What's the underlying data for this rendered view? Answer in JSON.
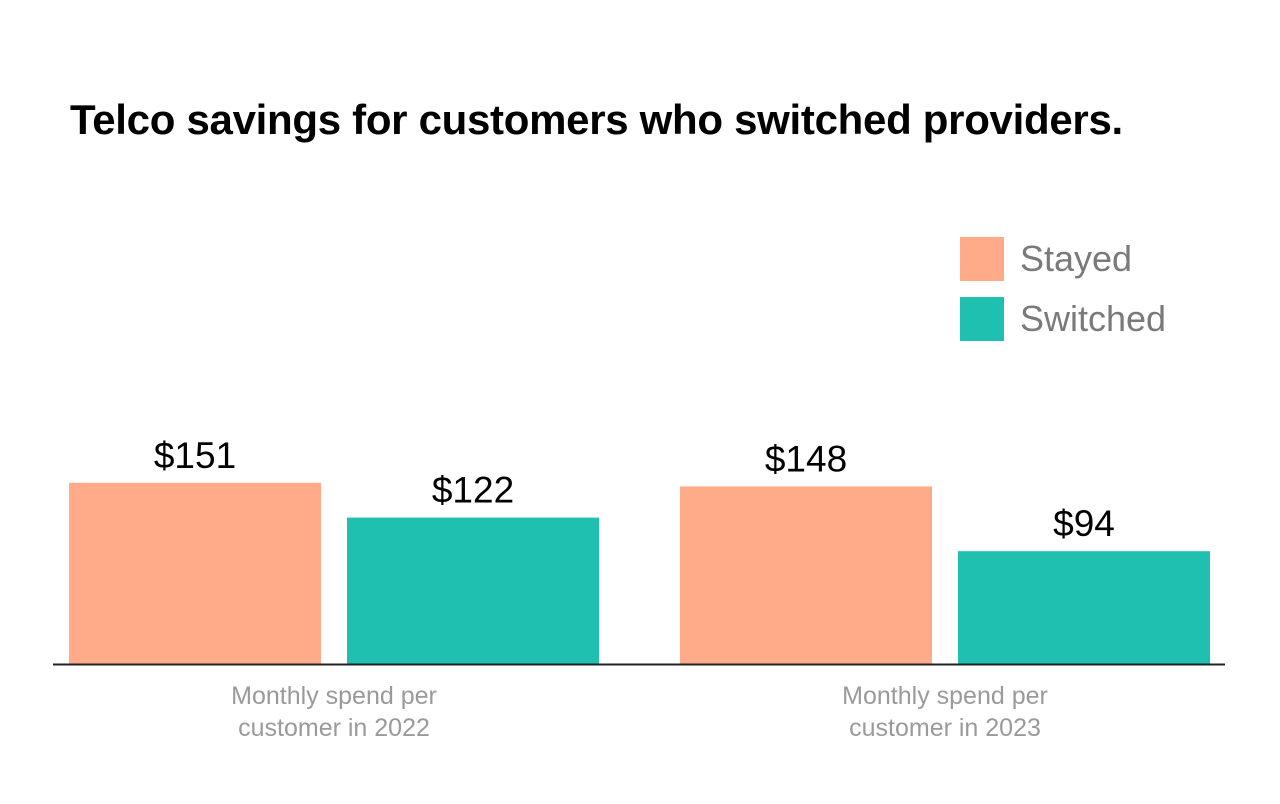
{
  "chart_data": {
    "type": "bar",
    "title": "Telco savings for customers who switched providers.",
    "categories": [
      [
        "Monthly spend per",
        "customer in 2022"
      ],
      [
        "Monthly spend per",
        "customer in 2023"
      ]
    ],
    "series": [
      {
        "name": "Stayed",
        "color": "#ffaa88",
        "values": [
          151,
          148
        ],
        "labels": [
          "$151",
          "$148"
        ]
      },
      {
        "name": "Switched",
        "color": "#1fc0b0",
        "values": [
          122,
          94
        ],
        "labels": [
          "$122",
          "$94"
        ]
      }
    ],
    "ylim": [
      0,
      180
    ],
    "grid": false,
    "legend_position": "top-right",
    "xlabel": "",
    "ylabel": ""
  }
}
